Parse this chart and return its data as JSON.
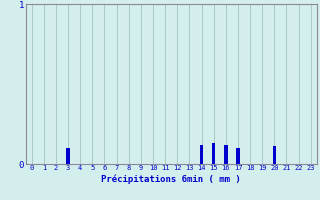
{
  "xlabel": "Précipitations 6min ( mm )",
  "background_color": "#d4eeed",
  "bar_color": "#0000cc",
  "grid_color": "#a8c8c4",
  "text_color": "#0000cc",
  "axis_color": "#888899",
  "xlim": [
    -0.5,
    23.5
  ],
  "ylim": [
    0,
    1.0
  ],
  "yticks": [
    0,
    1
  ],
  "xticks": [
    0,
    1,
    2,
    3,
    4,
    5,
    6,
    7,
    8,
    9,
    10,
    11,
    12,
    13,
    14,
    15,
    16,
    17,
    18,
    19,
    20,
    21,
    22,
    23
  ],
  "bar_data": {
    "3": 0.1,
    "14": 0.12,
    "15": 0.13,
    "16": 0.12,
    "17": 0.1,
    "20": 0.11
  },
  "bar_width": 0.3
}
